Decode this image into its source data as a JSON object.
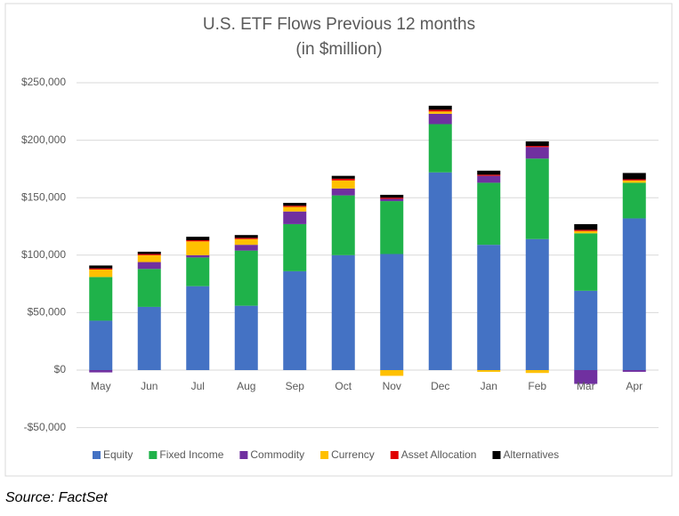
{
  "chart_data": {
    "type": "stacked_bar",
    "title": "U.S. ETF Flows Previous 12 months",
    "subtitle": "(in $million)",
    "source": "Source: FactSet",
    "categories": [
      "May",
      "Jun",
      "Jul",
      "Aug",
      "Sep",
      "Oct",
      "Nov",
      "Dec",
      "Jan",
      "Feb",
      "Mar",
      "Apr"
    ],
    "series": [
      {
        "name": "Equity",
        "color": "#4472c4",
        "values": [
          43000,
          55000,
          73000,
          56000,
          86000,
          100000,
          101000,
          172000,
          109000,
          114000,
          69000,
          132000
        ]
      },
      {
        "name": "Fixed Income",
        "color": "#1fb24a",
        "values": [
          38000,
          33000,
          25000,
          48000,
          41000,
          52000,
          46000,
          42000,
          54000,
          70000,
          50000,
          31000
        ]
      },
      {
        "name": "Commodity",
        "color": "#7030a0",
        "values": [
          -2000,
          6000,
          2000,
          5000,
          11000,
          6000,
          2000,
          9000,
          6000,
          10000,
          -12000,
          -1500
        ]
      },
      {
        "name": "Currency",
        "color": "#ffc000",
        "values": [
          6500,
          6000,
          12000,
          5000,
          4000,
          7000,
          -5000,
          2000,
          -1500,
          -2500,
          2000,
          2000
        ]
      },
      {
        "name": "Asset Allocation",
        "color": "#e00000",
        "values": [
          1000,
          1000,
          1000,
          1000,
          1000,
          1500,
          1000,
          1500,
          1000,
          1000,
          1000,
          1000
        ]
      },
      {
        "name": "Alternatives",
        "color": "#000000",
        "values": [
          2500,
          2000,
          3000,
          2500,
          2500,
          2500,
          2500,
          3500,
          3500,
          4000,
          5000,
          5500
        ]
      }
    ],
    "ylim": [
      -50000,
      250000
    ],
    "yticks": [
      {
        "value": -50000,
        "label": "-$50,000"
      },
      {
        "value": 0,
        "label": "$0"
      },
      {
        "value": 50000,
        "label": "$50,000"
      },
      {
        "value": 100000,
        "label": "$100,000"
      },
      {
        "value": 150000,
        "label": "$150,000"
      },
      {
        "value": 200000,
        "label": "$200,000"
      },
      {
        "value": 250000,
        "label": "$250,000"
      }
    ],
    "grid": true,
    "legend": "bottom"
  }
}
